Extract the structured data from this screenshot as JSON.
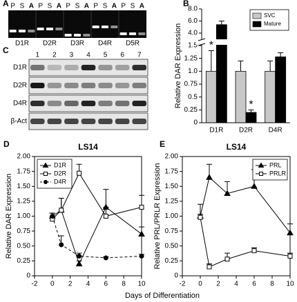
{
  "gel_a": {
    "label": "A",
    "groups": [
      {
        "name": "D1R",
        "lanes": [
          "P",
          "S",
          "A"
        ]
      },
      {
        "name": "D2R",
        "lanes": [
          "P",
          "S",
          "A"
        ]
      },
      {
        "name": "D3R",
        "lanes": [
          "P",
          "S",
          "A"
        ]
      },
      {
        "name": "D4R",
        "lanes": [
          "P",
          "S",
          "A"
        ]
      },
      {
        "name": "D5R",
        "lanes": [
          "P",
          "S",
          "A"
        ]
      }
    ]
  },
  "blot_c": {
    "label": "C",
    "lanes": [
      "1",
      "2",
      "3",
      "4",
      "5",
      "6",
      "7"
    ],
    "rows": [
      "D1R",
      "D2R",
      "D4R",
      "β-Act"
    ]
  },
  "shared_xlabel": "Days of Differentiation",
  "chart_data": [
    {
      "type": "bar",
      "label": "B",
      "ylabel": "Relative DAR Expression",
      "categories": [
        "D1R",
        "D2R",
        "D4R"
      ],
      "series": [
        {
          "name": "SVC",
          "color": "#c8c8c8",
          "values": [
            1.0,
            1.0,
            1.0
          ],
          "errors": [
            0.4,
            0.2,
            0.2
          ]
        },
        {
          "name": "Mature",
          "color": "#000000",
          "values": [
            5.4,
            0.2,
            1.28
          ],
          "errors": [
            0.6,
            0.05,
            0.08
          ]
        }
      ],
      "annotations": [
        "*",
        "*"
      ],
      "annotation_at": [
        [
          1,
          0
        ],
        [
          1,
          1
        ]
      ],
      "ylim": [
        0,
        8.0
      ],
      "ybreak": [
        1.5,
        4.0
      ],
      "yticks": [
        0,
        0.25,
        {
          "value": 0.5,
          "label": "0.5"
        },
        0.75,
        {
          "value": 1.0,
          "label": "1.0"
        },
        1.25,
        1.5,
        {
          "value": 4.0,
          "label": "4.0"
        },
        {
          "value": 6.0,
          "label": "6.0"
        },
        {
          "value": 8.0,
          "label": "8.0"
        }
      ],
      "legend": "top-right"
    },
    {
      "type": "line",
      "label": "D",
      "title": "LS14",
      "ylabel": "Relative DAR Expression",
      "x": [
        0,
        1,
        3,
        6,
        10
      ],
      "series": [
        {
          "name": "D1R",
          "color": "#000000",
          "marker": "triangle",
          "filled": true,
          "dashed": false,
          "values": [
            1.0,
            1.1,
            0.2,
            1.15,
            0.7
          ],
          "errors": [
            0.05,
            0.2,
            0.05,
            0.3,
            0.12
          ]
        },
        {
          "name": "D2R",
          "color": "#000000",
          "marker": "square",
          "filled": false,
          "dashed": false,
          "values": [
            0.95,
            1.1,
            1.72,
            1.0,
            1.15
          ],
          "errors": [
            0.05,
            0.2,
            0.15,
            0.15,
            0.2
          ]
        },
        {
          "name": "D4R",
          "color": "#000000",
          "marker": "circle",
          "filled": true,
          "dashed": true,
          "values": [
            1.0,
            0.52,
            0.33,
            0.3,
            0.33
          ],
          "errors": [
            0.05,
            0.15,
            0.05,
            0.02,
            0.03
          ]
        }
      ],
      "xlim": [
        -2,
        10
      ],
      "xticks": [
        -2,
        0,
        2,
        4,
        6,
        8,
        10
      ],
      "ylim": [
        0,
        2.0
      ],
      "yticks": [
        0,
        0.25,
        {
          "value": 0.5,
          "label": "0.50"
        },
        0.75,
        {
          "value": 1.0,
          "label": "1.00"
        },
        1.25,
        {
          "value": 1.5,
          "label": "1.50"
        },
        1.75,
        {
          "value": 2.0,
          "label": "2.00"
        }
      ],
      "legend": "top-left"
    },
    {
      "type": "line",
      "label": "E",
      "title": "LS14",
      "ylabel": "Relative PRL/PRLR Expression",
      "x": [
        0,
        1,
        3,
        6,
        10
      ],
      "series": [
        {
          "name": "PRL",
          "color": "#000000",
          "marker": "triangle",
          "filled": true,
          "dashed": false,
          "values": [
            1.0,
            1.65,
            1.38,
            1.5,
            0.72
          ],
          "errors": [
            0.2,
            0.22,
            0.2,
            0.28,
            0.15
          ]
        },
        {
          "name": "PRLR",
          "color": "#000000",
          "marker": "square",
          "filled": false,
          "dashed": false,
          "values": [
            0.98,
            0.15,
            0.28,
            0.42,
            0.33
          ],
          "errors": [
            0.05,
            0.05,
            0.1,
            0.05,
            0.05
          ]
        }
      ],
      "xlim": [
        -2,
        10
      ],
      "xticks": [
        -2,
        0,
        2,
        4,
        6,
        8,
        10
      ],
      "ylim": [
        0,
        2.0
      ],
      "yticks": [
        0,
        0.25,
        {
          "value": 0.5,
          "label": "0.50"
        },
        0.75,
        {
          "value": 1.0,
          "label": "1.00"
        },
        1.25,
        {
          "value": 1.5,
          "label": "1.50"
        },
        1.75,
        {
          "value": 2.0,
          "label": "2.00"
        }
      ],
      "legend": "top-right"
    }
  ]
}
